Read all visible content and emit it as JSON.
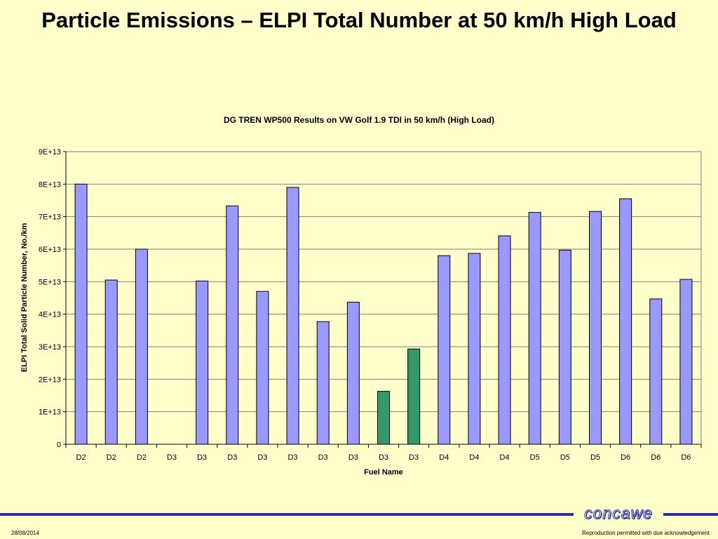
{
  "slide": {
    "title": "Particle Emissions – ELPI Total Number at 50 km/h High Load",
    "date": "28/08/2014",
    "note": "Reproduction permitted with due acknowledgement",
    "logo_text": "concawe"
  },
  "colors": {
    "series_default": "#9999ff",
    "series_highlight": "#339966",
    "background": "#ffffcc"
  },
  "chart_data": {
    "type": "bar",
    "title": "DG TREN WP500 Results on VW Golf 1.9 TDI in 50 km/h (High Load)",
    "xlabel": "Fuel Name",
    "ylabel": "ELPI Total Solid Particle Number, No./km",
    "ylim": [
      0,
      90000000000000
    ],
    "yticks": [
      {
        "value": 0,
        "label": "0"
      },
      {
        "value": 10000000000000,
        "label": "1E+13"
      },
      {
        "value": 20000000000000,
        "label": "2E+13"
      },
      {
        "value": 30000000000000,
        "label": "3E+13"
      },
      {
        "value": 40000000000000,
        "label": "4E+13"
      },
      {
        "value": 50000000000000,
        "label": "5E+13"
      },
      {
        "value": 60000000000000,
        "label": "6E+13"
      },
      {
        "value": 70000000000000,
        "label": "7E+13"
      },
      {
        "value": 80000000000000,
        "label": "8E+13"
      },
      {
        "value": 90000000000000,
        "label": "9E+13"
      }
    ],
    "grid": true,
    "legend": "none",
    "categories": [
      "D2",
      "D2",
      "D2",
      "D3",
      "D3",
      "D3",
      "D3",
      "D3",
      "D3",
      "D3",
      "D3",
      "D3",
      "D4",
      "D4",
      "D4",
      "D5",
      "D5",
      "D5",
      "D6",
      "D6",
      "D6"
    ],
    "values": [
      80000000000000,
      50500000000000,
      60000000000000,
      0,
      50200000000000,
      73300000000000,
      47000000000000,
      79000000000000,
      37700000000000,
      43700000000000,
      16300000000000,
      29300000000000,
      58000000000000,
      58700000000000,
      64100000000000,
      71300000000000,
      59700000000000,
      71600000000000,
      75500000000000,
      44700000000000,
      50700000000000
    ],
    "highlight": [
      false,
      false,
      false,
      false,
      false,
      false,
      false,
      false,
      false,
      false,
      true,
      true,
      false,
      false,
      false,
      false,
      false,
      false,
      false,
      false,
      false
    ]
  }
}
